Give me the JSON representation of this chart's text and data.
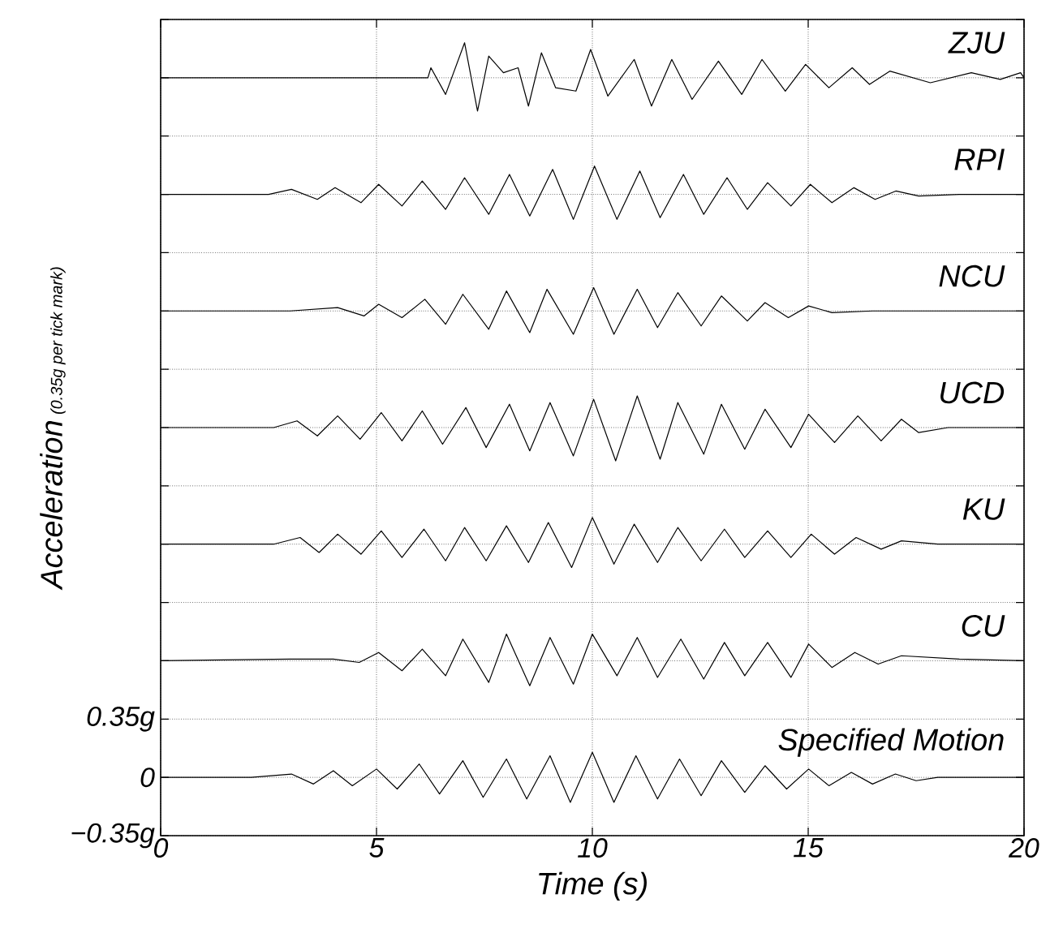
{
  "chart_data": {
    "type": "line",
    "xlabel": "Time (s)",
    "ylabel": "Acceleration",
    "annotations": [
      "(0.35g per tick mark)"
    ],
    "xlim": [
      0,
      20
    ],
    "xticks": [
      0,
      5,
      10,
      15,
      20
    ],
    "ylim": [
      -0.35,
      4.55
    ],
    "yticks": [
      {
        "value": -0.35,
        "label": "−0.35g"
      },
      0,
      {
        "value": 0.35,
        "label": "0.35g"
      },
      {
        "value": 0.7,
        "label": null
      },
      {
        "value": 1.05,
        "label": null
      },
      {
        "value": 1.4,
        "label": null
      },
      {
        "value": 1.75,
        "label": null
      },
      {
        "value": 2.1,
        "label": null
      },
      {
        "value": 2.45,
        "label": null
      },
      {
        "value": 2.8,
        "label": null
      },
      {
        "value": 3.15,
        "label": null
      },
      {
        "value": 3.5,
        "label": null
      },
      {
        "value": 3.85,
        "label": null
      },
      {
        "value": 4.2,
        "label": null
      },
      {
        "value": 4.55,
        "label": null
      }
    ],
    "grid": true,
    "line_style": "solid",
    "legend": "right",
    "series": [
      {
        "name": "ZJU",
        "color": "#000000",
        "x": [
          0,
          6.19,
          6.26,
          6.6,
          7.04,
          7.34,
          7.6,
          7.94,
          8.28,
          8.52,
          8.82,
          9.15,
          9.62,
          9.96,
          10.36,
          10.97,
          11.37,
          11.84,
          12.31,
          12.92,
          13.46,
          13.93,
          14.47,
          14.94,
          15.48,
          16.02,
          16.42,
          16.89,
          17.83,
          18.78,
          19.45,
          19.92,
          20
        ],
        "values": [
          4.2,
          4.2,
          4.26,
          4.1,
          4.41,
          4.0,
          4.33,
          4.23,
          4.26,
          4.03,
          4.35,
          4.14,
          4.12,
          4.37,
          4.09,
          4.31,
          4.03,
          4.31,
          4.07,
          4.3,
          4.1,
          4.31,
          4.12,
          4.28,
          4.14,
          4.26,
          4.16,
          4.24,
          4.17,
          4.23,
          4.19,
          4.23,
          4.2
        ]
      },
      {
        "name": "RPI",
        "color": "#000000",
        "x": [
          0,
          2.5,
          3.03,
          3.63,
          4.04,
          4.64,
          5.05,
          5.59,
          6.06,
          6.6,
          7.04,
          7.6,
          8.08,
          8.55,
          9.08,
          9.56,
          10.05,
          10.57,
          11.1,
          11.57,
          12.11,
          12.58,
          13.12,
          13.59,
          14.06,
          14.6,
          15.05,
          15.55,
          16.06,
          16.55,
          17.03,
          17.56,
          18.5,
          20
        ],
        "values": [
          3.5,
          3.5,
          3.53,
          3.47,
          3.54,
          3.45,
          3.56,
          3.43,
          3.58,
          3.41,
          3.6,
          3.38,
          3.62,
          3.37,
          3.65,
          3.35,
          3.67,
          3.35,
          3.64,
          3.36,
          3.62,
          3.38,
          3.6,
          3.41,
          3.57,
          3.43,
          3.56,
          3.45,
          3.54,
          3.47,
          3.52,
          3.49,
          3.5,
          3.5
        ]
      },
      {
        "name": "NCU",
        "color": "#000000",
        "x": [
          0,
          3.0,
          4.1,
          4.71,
          5.05,
          5.59,
          6.12,
          6.6,
          7.0,
          7.6,
          8.01,
          8.55,
          8.95,
          9.56,
          10.03,
          10.5,
          11.04,
          11.51,
          11.98,
          12.52,
          12.99,
          13.59,
          14.0,
          14.54,
          15.01,
          15.55,
          16.49,
          20
        ],
        "values": [
          2.8,
          2.8,
          2.82,
          2.77,
          2.84,
          2.76,
          2.87,
          2.72,
          2.9,
          2.69,
          2.92,
          2.67,
          2.93,
          2.66,
          2.94,
          2.66,
          2.93,
          2.7,
          2.91,
          2.71,
          2.89,
          2.74,
          2.85,
          2.76,
          2.83,
          2.79,
          2.8,
          2.8
        ]
      },
      {
        "name": "UCD",
        "color": "#000000",
        "x": [
          0,
          2.62,
          3.16,
          3.63,
          4.1,
          4.62,
          5.11,
          5.59,
          6.06,
          6.53,
          7.07,
          7.54,
          8.08,
          8.55,
          9.02,
          9.56,
          10.03,
          10.54,
          11.04,
          11.57,
          11.98,
          12.58,
          12.99,
          13.53,
          14.0,
          14.6,
          15.01,
          15.61,
          16.15,
          16.69,
          17.16,
          17.56,
          18.24,
          20
        ],
        "values": [
          2.1,
          2.1,
          2.14,
          2.05,
          2.17,
          2.03,
          2.19,
          2.02,
          2.2,
          2.0,
          2.22,
          1.98,
          2.24,
          1.96,
          2.25,
          1.93,
          2.27,
          1.9,
          2.29,
          1.91,
          2.25,
          1.94,
          2.24,
          1.97,
          2.21,
          1.98,
          2.18,
          2.01,
          2.17,
          2.02,
          2.15,
          2.07,
          2.1,
          2.1
        ]
      },
      {
        "name": "KU",
        "color": "#000000",
        "x": [
          0,
          2.62,
          3.23,
          3.67,
          4.1,
          4.64,
          5.11,
          5.59,
          6.1,
          6.6,
          7.04,
          7.54,
          8.01,
          8.52,
          8.98,
          9.52,
          10.0,
          10.5,
          10.97,
          11.51,
          11.98,
          12.52,
          13.06,
          13.53,
          14.06,
          14.6,
          15.07,
          15.61,
          16.11,
          16.69,
          17.16,
          18,
          20
        ],
        "values": [
          1.4,
          1.4,
          1.44,
          1.35,
          1.46,
          1.34,
          1.48,
          1.32,
          1.49,
          1.3,
          1.5,
          1.3,
          1.51,
          1.29,
          1.53,
          1.26,
          1.56,
          1.28,
          1.52,
          1.29,
          1.5,
          1.3,
          1.49,
          1.32,
          1.48,
          1.32,
          1.46,
          1.34,
          1.44,
          1.37,
          1.42,
          1.4,
          1.4
        ]
      },
      {
        "name": "CU",
        "color": "#000000",
        "x": [
          0,
          3.0,
          4.0,
          4.6,
          5.05,
          5.59,
          6.06,
          6.6,
          7.0,
          7.6,
          8.01,
          8.55,
          9.02,
          9.56,
          10.0,
          10.57,
          11.04,
          11.51,
          12.05,
          12.58,
          13.06,
          13.53,
          14.06,
          14.6,
          15.01,
          15.55,
          16.08,
          16.62,
          17.16,
          18.5,
          20
        ],
        "values": [
          0.7,
          0.71,
          0.71,
          0.69,
          0.75,
          0.64,
          0.77,
          0.61,
          0.83,
          0.57,
          0.86,
          0.55,
          0.84,
          0.56,
          0.86,
          0.61,
          0.84,
          0.6,
          0.83,
          0.59,
          0.81,
          0.61,
          0.81,
          0.6,
          0.8,
          0.66,
          0.75,
          0.68,
          0.73,
          0.71,
          0.7
        ]
      },
      {
        "name": "Specified Motion",
        "color": "#000000",
        "x": [
          0,
          2.1,
          3.03,
          3.54,
          4.0,
          4.44,
          5.0,
          5.48,
          5.99,
          6.46,
          7.0,
          7.47,
          8.01,
          8.48,
          9.02,
          9.49,
          10.0,
          10.5,
          11.01,
          11.51,
          12.02,
          12.52,
          12.99,
          13.53,
          14.0,
          14.5,
          15.01,
          15.48,
          16.0,
          16.49,
          17.02,
          17.5,
          18.0,
          20
        ],
        "values": [
          0,
          0,
          0.02,
          -0.04,
          0.04,
          -0.05,
          0.05,
          -0.07,
          0.08,
          -0.1,
          0.1,
          -0.12,
          0.11,
          -0.13,
          0.13,
          -0.15,
          0.15,
          -0.15,
          0.13,
          -0.13,
          0.11,
          -0.11,
          0.1,
          -0.09,
          0.07,
          -0.07,
          0.05,
          -0.05,
          0.03,
          -0.04,
          0.02,
          -0.02,
          0,
          0
        ]
      }
    ]
  }
}
